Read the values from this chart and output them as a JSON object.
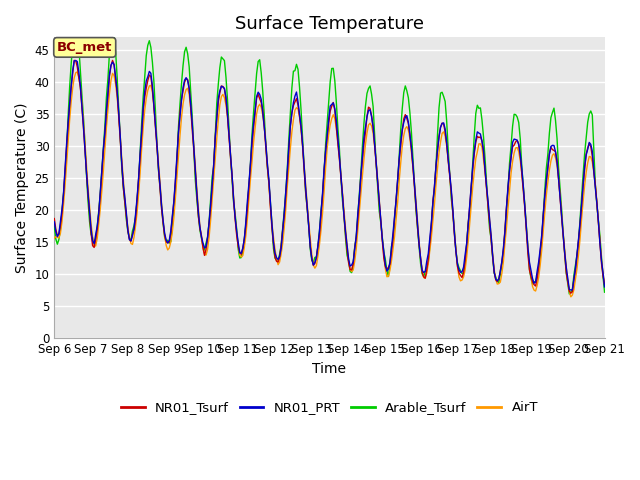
{
  "title": "Surface Temperature",
  "ylabel": "Surface Temperature (C)",
  "xlabel": "Time",
  "ylim": [
    0,
    47
  ],
  "yticks": [
    0,
    5,
    10,
    15,
    20,
    25,
    30,
    35,
    40,
    45
  ],
  "date_labels": [
    "Sep 6",
    "Sep 7",
    "Sep 8",
    "Sep 9",
    "Sep 10",
    "Sep 11",
    "Sep 12",
    "Sep 13",
    "Sep 14",
    "Sep 15",
    "Sep 16",
    "Sep 17",
    "Sep 18",
    "Sep 19",
    "Sep 20",
    "Sep 21"
  ],
  "colors": {
    "NR01_Tsurf": "#cc0000",
    "NR01_PRT": "#0000cc",
    "Arable_Tsurf": "#00cc00",
    "AirT": "#ff9900"
  },
  "annotation_text": "BC_met",
  "annotation_color": "#8b0000",
  "annotation_bg": "#ffff99",
  "plot_bg": "#e8e8e8",
  "inner_bg": "#d8d8d8",
  "grid_color": "#ffffff",
  "title_fontsize": 13,
  "label_fontsize": 10,
  "tick_fontsize": 8.5,
  "legend_fontsize": 9.5
}
